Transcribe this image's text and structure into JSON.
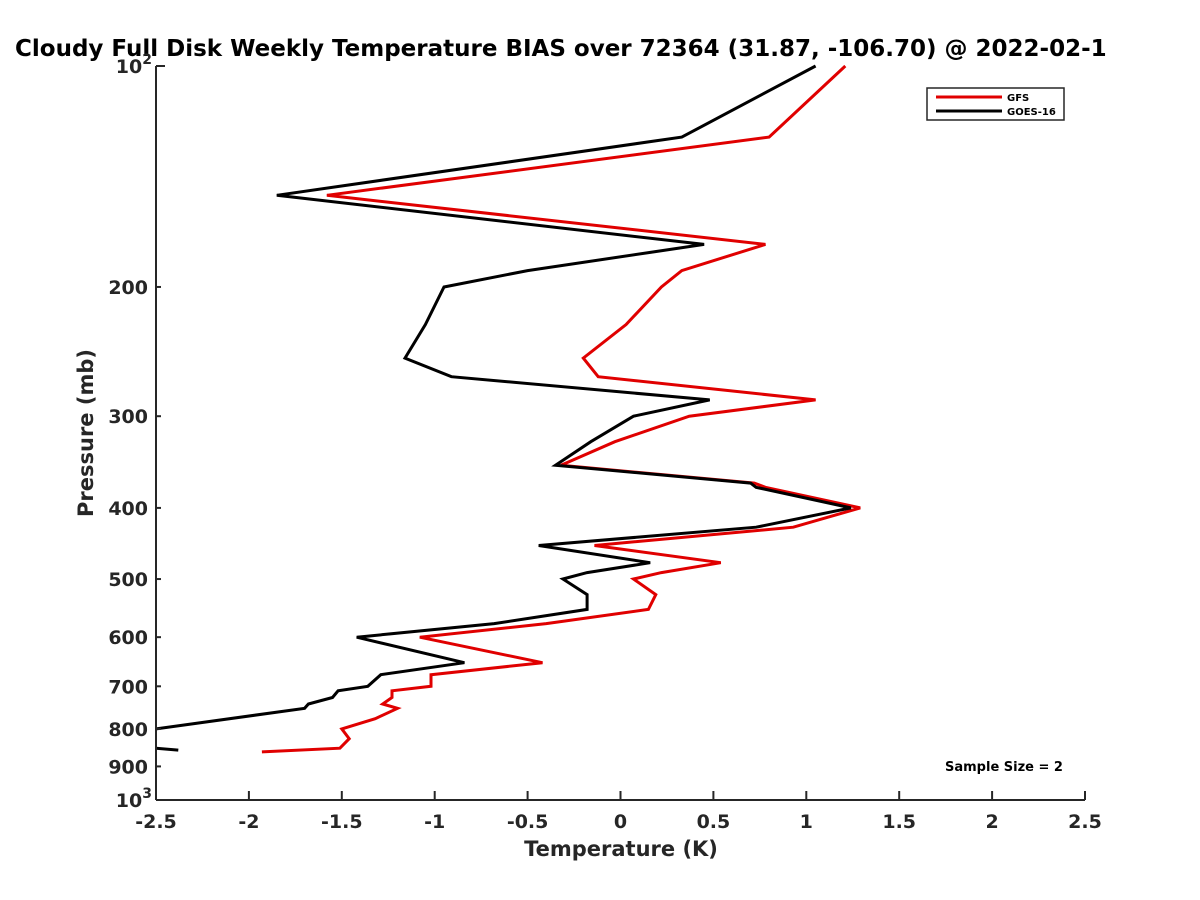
{
  "chart_data": {
    "type": "line",
    "title": "Cloudy Full Disk Weekly Temperature BIAS over 72364 (31.87, -106.70) @ 2022-02-1",
    "xlabel": "Temperature (K)",
    "ylabel": "Pressure (mb)",
    "xlim": [
      -2.5,
      2.5
    ],
    "ylim": [
      100,
      1000
    ],
    "y_scale": "log",
    "y_reversed": true,
    "grid": false,
    "x_ticks": [
      -2.5,
      -2,
      -1.5,
      -1,
      -0.5,
      0,
      0.5,
      1,
      1.5,
      2,
      2.5
    ],
    "x_tick_labels": [
      "-2.5",
      "-2",
      "-1.5",
      "-1",
      "-0.5",
      "0",
      "0.5",
      "1",
      "1.5",
      "2",
      "2.5"
    ],
    "y_ticks": [
      100,
      200,
      300,
      400,
      500,
      600,
      700,
      800,
      900,
      1000
    ],
    "y_tick_labels": [
      {
        "base": "10",
        "exp": "2"
      },
      {
        "base": "200",
        "exp": ""
      },
      {
        "base": "300",
        "exp": ""
      },
      {
        "base": "400",
        "exp": ""
      },
      {
        "base": "500",
        "exp": ""
      },
      {
        "base": "600",
        "exp": ""
      },
      {
        "base": "700",
        "exp": ""
      },
      {
        "base": "800",
        "exp": ""
      },
      {
        "base": "900",
        "exp": ""
      },
      {
        "base": "10",
        "exp": "3"
      }
    ],
    "legend_position": "top-right",
    "series": [
      {
        "name": "GFS",
        "color": "#e00000",
        "points": [
          [
            1.21,
            100
          ],
          [
            0.8,
            125
          ],
          [
            -1.58,
            150
          ],
          [
            0.78,
            175
          ],
          [
            0.33,
            190
          ],
          [
            0.22,
            200
          ],
          [
            0.03,
            225
          ],
          [
            -0.2,
            250
          ],
          [
            -0.12,
            265
          ],
          [
            1.05,
            285
          ],
          [
            0.37,
            300
          ],
          [
            -0.03,
            325
          ],
          [
            -0.32,
            350
          ],
          [
            0.72,
            370
          ],
          [
            0.78,
            375
          ],
          [
            1.29,
            400
          ],
          [
            0.93,
            425
          ],
          [
            -0.14,
            450
          ],
          [
            0.54,
            475
          ],
          [
            0.22,
            490
          ],
          [
            0.07,
            500
          ],
          [
            0.19,
            525
          ],
          [
            0.15,
            550
          ],
          [
            -0.4,
            575
          ],
          [
            -1.08,
            600
          ],
          [
            -0.42,
            650
          ],
          [
            -1.02,
            675
          ],
          [
            -1.02,
            700
          ],
          [
            -1.23,
            710
          ],
          [
            -1.23,
            725
          ],
          [
            -1.28,
            740
          ],
          [
            -1.2,
            750
          ],
          [
            -1.32,
            775
          ],
          [
            -1.5,
            800
          ],
          [
            -1.46,
            825
          ],
          [
            -1.51,
            850
          ],
          [
            -1.93,
            860
          ]
        ]
      },
      {
        "name": "GOES-16",
        "color": "#000000",
        "points": [
          [
            1.05,
            100
          ],
          [
            0.33,
            125
          ],
          [
            -1.85,
            150
          ],
          [
            0.45,
            175
          ],
          [
            -0.5,
            190
          ],
          [
            -0.95,
            200
          ],
          [
            -1.05,
            225
          ],
          [
            -1.16,
            250
          ],
          [
            -0.91,
            265
          ],
          [
            0.48,
            285
          ],
          [
            0.07,
            300
          ],
          [
            -0.16,
            325
          ],
          [
            -0.35,
            350
          ],
          [
            0.7,
            370
          ],
          [
            0.73,
            375
          ],
          [
            1.24,
            400
          ],
          [
            0.73,
            425
          ],
          [
            -0.44,
            450
          ],
          [
            0.16,
            475
          ],
          [
            -0.18,
            490
          ],
          [
            -0.31,
            500
          ],
          [
            -0.18,
            525
          ],
          [
            -0.18,
            550
          ],
          [
            -0.68,
            575
          ],
          [
            -1.42,
            600
          ],
          [
            -0.84,
            650
          ],
          [
            -1.29,
            675
          ],
          [
            -1.36,
            700
          ],
          [
            -1.52,
            710
          ],
          [
            -1.55,
            725
          ],
          [
            -1.68,
            740
          ],
          [
            -1.7,
            750
          ],
          [
            -2.5,
            800
          ]
        ]
      },
      {
        "name": "",
        "color": "#000000",
        "points": [
          [
            -2.5,
            850
          ],
          [
            -2.38,
            855
          ]
        ]
      }
    ],
    "annotation": "Sample Size = 2"
  }
}
